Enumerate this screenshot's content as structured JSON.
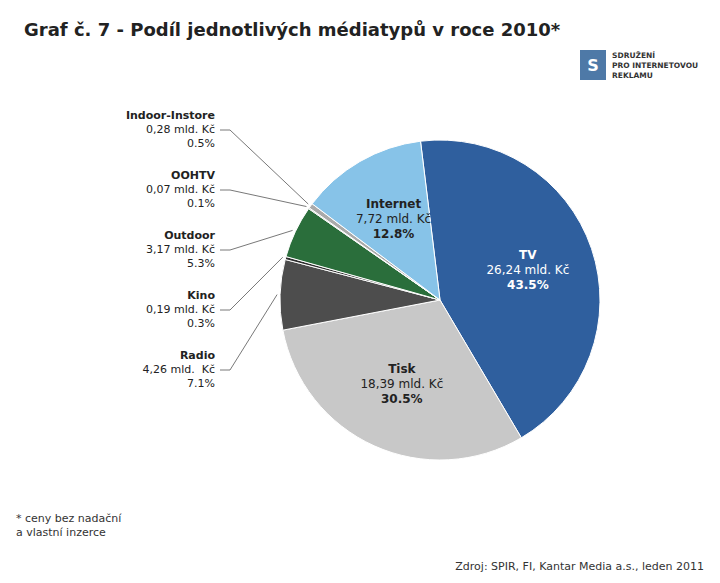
{
  "chart_data": {
    "type": "pie",
    "title": "Graf č. 7 - Podíl jednotlivých médiatypů v roce 2010*",
    "categories": [
      "TV",
      "Tisk",
      "Radio",
      "Kino",
      "Outdoor",
      "OOHTV",
      "Indoor-Instore",
      "Internet"
    ],
    "values": [
      43.5,
      30.5,
      7.1,
      0.3,
      5.3,
      0.1,
      0.5,
      12.8
    ],
    "value_labels": [
      "43.5%",
      "30.5%",
      "7.1%",
      "0.3%",
      "5.3%",
      "0.1%",
      "0.5%",
      "12.8%"
    ],
    "amounts": [
      "26,24 mld. Kč",
      "18,39 mld. Kč",
      "4,26 mld.  Kč",
      "0,19 mld. Kč",
      "3,17 mld. Kč",
      "0,07 mld. Kč",
      "0,28 mld. Kč",
      "7,72 mld. Kč"
    ],
    "colors": [
      "#2f5f9e",
      "#c8c8c8",
      "#4d4d4d",
      "#2e2e2e",
      "#2a6e3b",
      "#888888",
      "#aaaaaa",
      "#87c3e8"
    ],
    "data_labels": true,
    "annotations": [
      "* ceny bez nadační",
      "a vlastní inzerce",
      "Zdroj: SPIR, FI, Kantar Media a.s., leden 2011",
      "S",
      "SDRUŽENÍ",
      "PRO INTERNETOVOU",
      "REKLAMU"
    ]
  }
}
